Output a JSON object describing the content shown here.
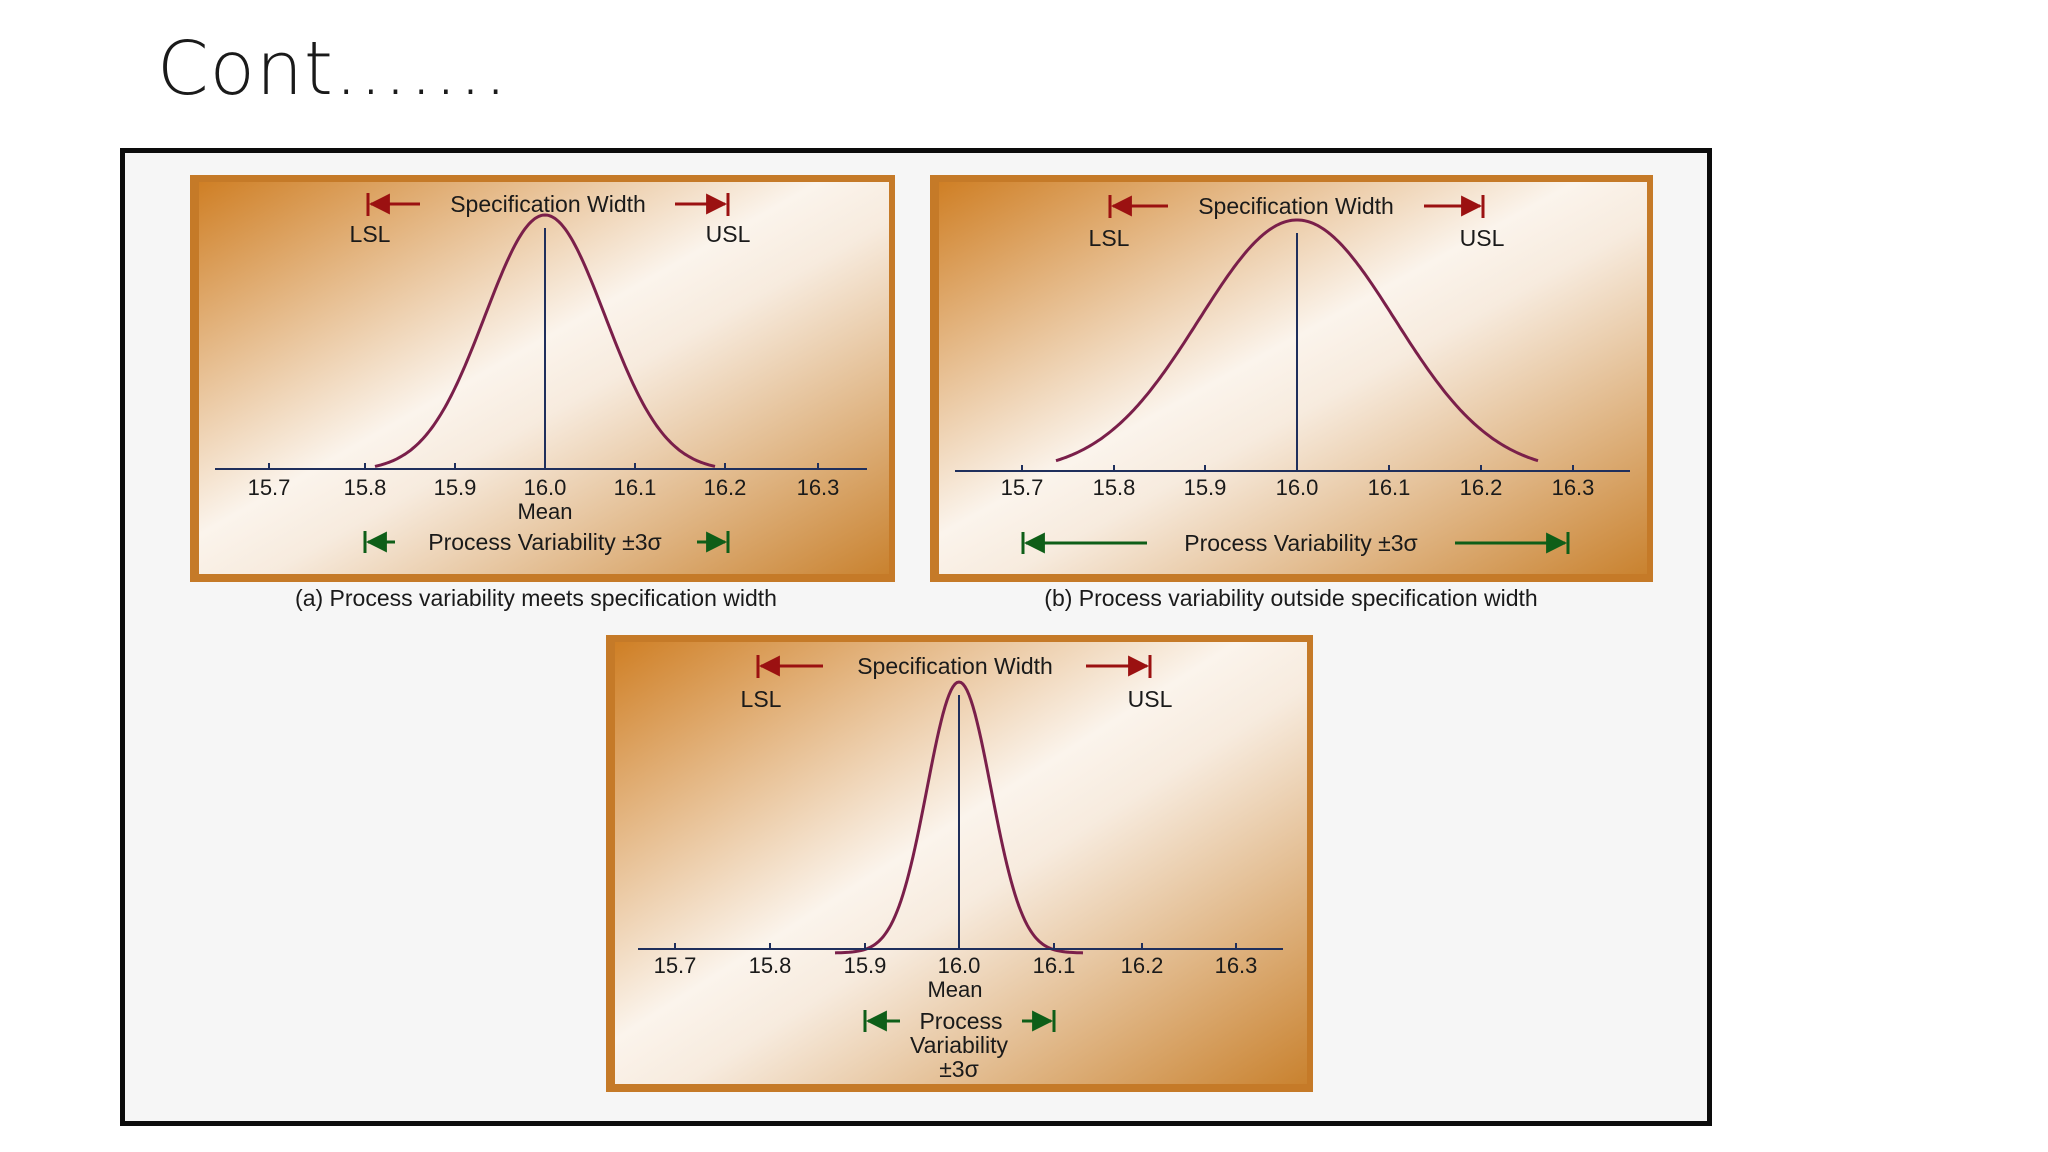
{
  "slide": {
    "title": "Cont……."
  },
  "colors": {
    "panel_warm": "#d1822b",
    "panel_light": "#fbf4ec",
    "curve": "#7a1f4a",
    "axis": "#1f2f5c",
    "spec_arrow": "#9b1111",
    "process_arrow": "#0e5e18",
    "frame": "#0c0c0c"
  },
  "panels": [
    {
      "id": "a",
      "spec_label": "Specification Width",
      "lsl_label": "LSL",
      "usl_label": "USL",
      "ticks": [
        "15.7",
        "15.8",
        "15.9",
        "16.0",
        "16.1",
        "16.2",
        "16.3"
      ],
      "mean_label": "Mean",
      "process_label": "Process Variability ±3σ",
      "caption": "(a) Process variability meets specification width",
      "lsl": 15.8,
      "usl": 16.2,
      "mean": 16.0,
      "process_range": [
        15.8,
        16.2
      ]
    },
    {
      "id": "b",
      "spec_label": "Specification Width",
      "lsl_label": "LSL",
      "usl_label": "USL",
      "ticks": [
        "15.7",
        "15.8",
        "15.9",
        "16.0",
        "16.1",
        "16.2",
        "16.3"
      ],
      "mean_label": "",
      "process_label": "Process Variability ±3σ",
      "caption": "(b) Process variability outside specification width",
      "lsl": 15.8,
      "usl": 16.2,
      "mean": 16.0,
      "process_range": [
        15.7,
        16.3
      ]
    },
    {
      "id": "c",
      "spec_label": "Specification Width",
      "lsl_label": "LSL",
      "usl_label": "USL",
      "ticks": [
        "15.7",
        "15.8",
        "15.9",
        "16.0",
        "16.1",
        "16.2",
        "16.3"
      ],
      "mean_label": "Mean",
      "process_label_lines": [
        "Process",
        "Variability",
        "±3σ"
      ],
      "caption": "",
      "lsl": 15.8,
      "usl": 16.2,
      "mean": 16.0,
      "process_range": [
        15.9,
        16.1
      ]
    }
  ]
}
